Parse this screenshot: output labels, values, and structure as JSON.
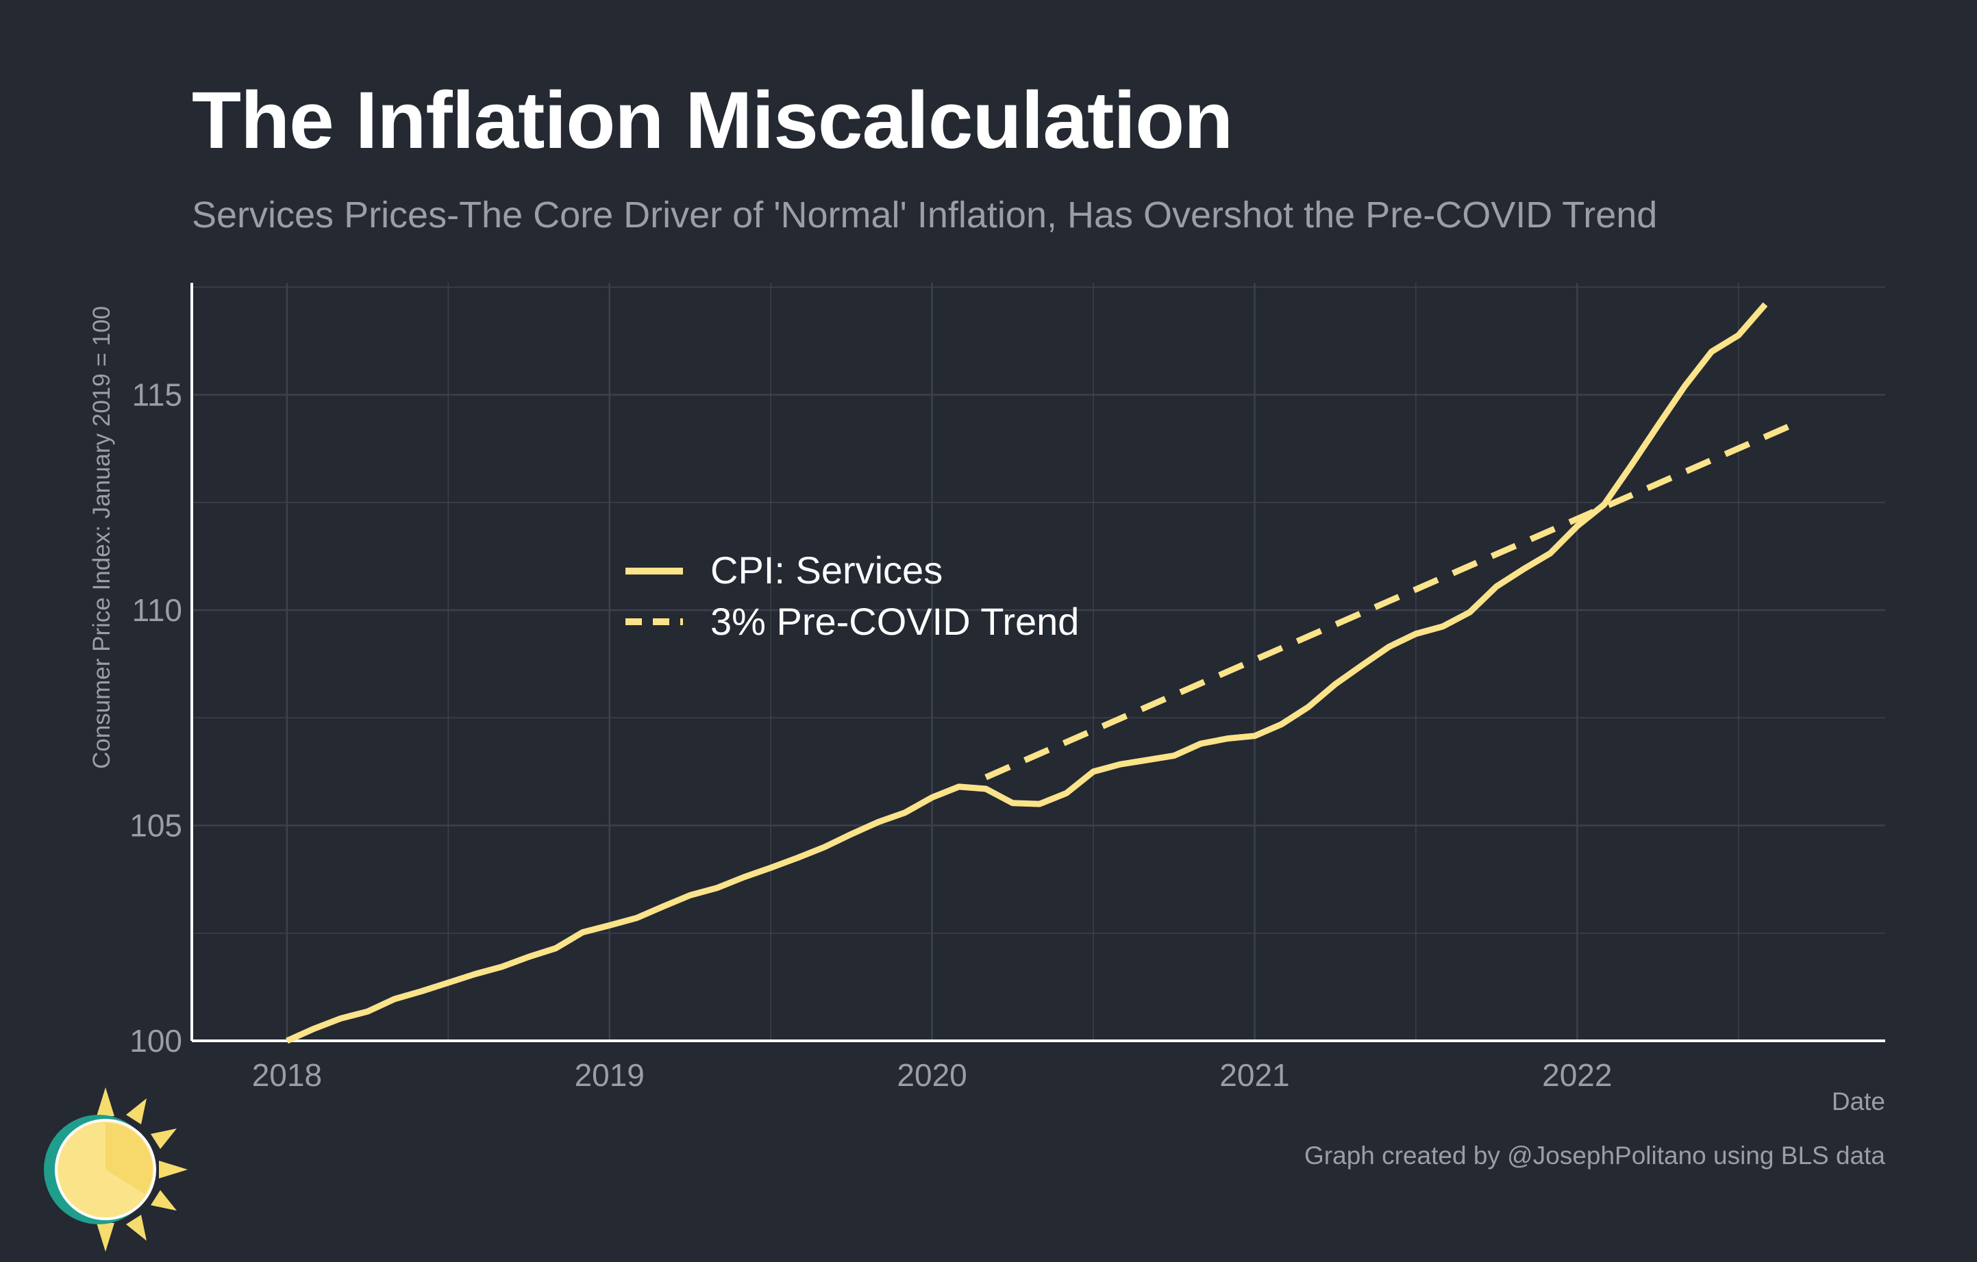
{
  "title": "The Inflation Miscalculation",
  "subtitle": "Services Prices-The Core Driver of 'Normal' Inflation, Has Overshot the Pre-COVID Trend",
  "caption": "Graph created by @JosephPolitano using BLS data",
  "colors": {
    "background": "#252932",
    "series": "#fbe38a",
    "grid": "#3c414b",
    "axis": "#ffffff",
    "text_muted": "#9a9ea5"
  },
  "chart_data": {
    "type": "line",
    "xlabel": "Date",
    "ylabel": "Consumer Price Index: January 2019 = 100",
    "xlim": [
      "2017-09-15",
      "2022-12-15"
    ],
    "ylim": [
      100,
      117.6
    ],
    "x_ticks": [
      "2018",
      "2019",
      "2020",
      "2021",
      "2022"
    ],
    "y_ticks": [
      100,
      105,
      110,
      115
    ],
    "grid": true,
    "legend_position": "center-left",
    "series": [
      {
        "name": "CPI: Services",
        "style": "solid",
        "x": [
          "2018-01",
          "2018-02",
          "2018-03",
          "2018-04",
          "2018-05",
          "2018-06",
          "2018-07",
          "2018-08",
          "2018-09",
          "2018-10",
          "2018-11",
          "2018-12",
          "2019-01",
          "2019-02",
          "2019-03",
          "2019-04",
          "2019-05",
          "2019-06",
          "2019-07",
          "2019-08",
          "2019-09",
          "2019-10",
          "2019-11",
          "2019-12",
          "2020-01",
          "2020-02",
          "2020-03",
          "2020-04",
          "2020-05",
          "2020-06",
          "2020-07",
          "2020-08",
          "2020-09",
          "2020-10",
          "2020-11",
          "2020-12",
          "2021-01",
          "2021-02",
          "2021-03",
          "2021-04",
          "2021-05",
          "2021-06",
          "2021-07",
          "2021-08",
          "2021-09",
          "2021-10",
          "2021-11",
          "2021-12",
          "2022-01",
          "2022-02",
          "2022-03",
          "2022-04",
          "2022-05",
          "2022-06",
          "2022-07",
          "2022-08"
        ],
        "y": [
          100.0,
          100.28,
          100.52,
          100.68,
          100.97,
          101.15,
          101.35,
          101.55,
          101.72,
          101.95,
          102.15,
          102.52,
          102.68,
          102.85,
          103.12,
          103.38,
          103.55,
          103.8,
          104.02,
          104.25,
          104.5,
          104.8,
          105.08,
          105.3,
          105.65,
          105.9,
          105.85,
          105.52,
          105.5,
          105.75,
          106.25,
          106.42,
          106.52,
          106.62,
          106.9,
          107.02,
          107.08,
          107.35,
          107.75,
          108.28,
          108.72,
          109.15,
          109.45,
          109.62,
          109.95,
          110.55,
          110.95,
          111.32,
          111.95,
          112.45,
          113.35,
          114.28,
          115.2,
          116.0,
          116.38,
          117.1
        ]
      },
      {
        "name": "3% Pre-COVID Trend",
        "style": "dashed",
        "x": [
          "2020-03",
          "2022-09"
        ],
        "y": [
          106.12,
          114.3
        ]
      }
    ]
  }
}
